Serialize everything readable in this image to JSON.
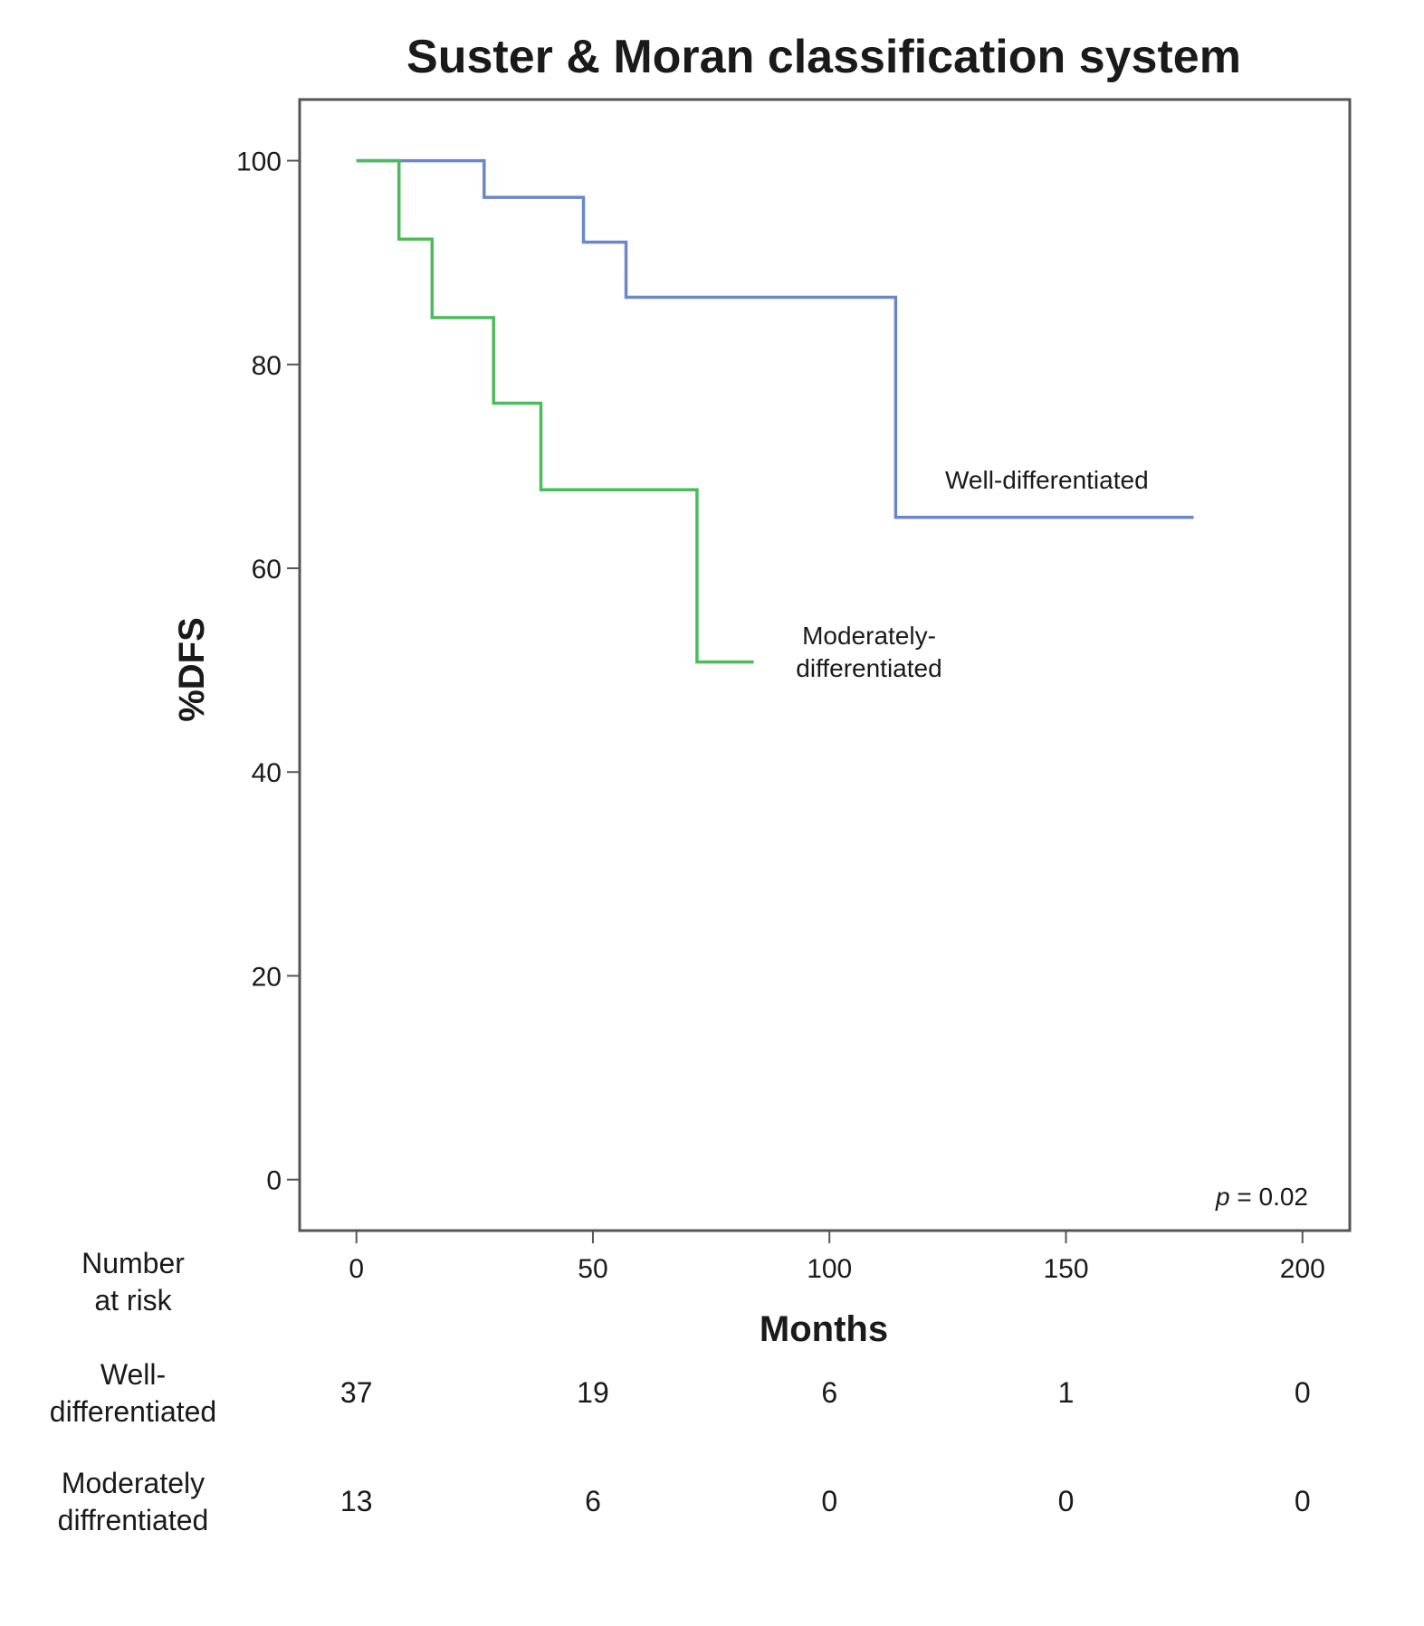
{
  "chart_data": {
    "type": "line",
    "subtype": "kaplan-meier step",
    "title": "Suster & Moran classification system",
    "xlabel": "Months",
    "ylabel": "%DFS",
    "xlim": [
      -12,
      210
    ],
    "ylim": [
      -5,
      106
    ],
    "xticks": [
      0,
      50,
      100,
      150,
      200
    ],
    "yticks": [
      0,
      20,
      40,
      60,
      80,
      100
    ],
    "grid": false,
    "series": [
      {
        "name": "Well-differentiated",
        "label": "Well-differentiated",
        "color": "#6b86c9",
        "steps": [
          [
            0,
            100
          ],
          [
            27,
            96.4
          ],
          [
            48,
            92
          ],
          [
            57,
            86.6
          ],
          [
            114,
            65
          ],
          [
            177,
            65
          ]
        ]
      },
      {
        "name": "Moderately-differentiated",
        "label_lines": [
          "Moderately-",
          "differentiated"
        ],
        "color": "#4cbc5a",
        "steps": [
          [
            0,
            100
          ],
          [
            9,
            92.3
          ],
          [
            16,
            84.6
          ],
          [
            29,
            76.2
          ],
          [
            39,
            67.7
          ],
          [
            72,
            50.8
          ],
          [
            84,
            50.8
          ]
        ]
      }
    ],
    "annotation": {
      "italic": "p",
      "text": " = 0.02"
    },
    "risk_table": {
      "header": [
        "Number",
        "at risk"
      ],
      "times": [
        0,
        50,
        100,
        150,
        200
      ],
      "rows": [
        {
          "label": [
            "Well-",
            "differentiated"
          ],
          "values": [
            "37",
            "19",
            "6",
            "1",
            "0"
          ]
        },
        {
          "label": [
            "Moderately",
            "diffrentiated"
          ],
          "values": [
            "13",
            "6",
            "0",
            "0",
            "0"
          ]
        }
      ]
    }
  }
}
